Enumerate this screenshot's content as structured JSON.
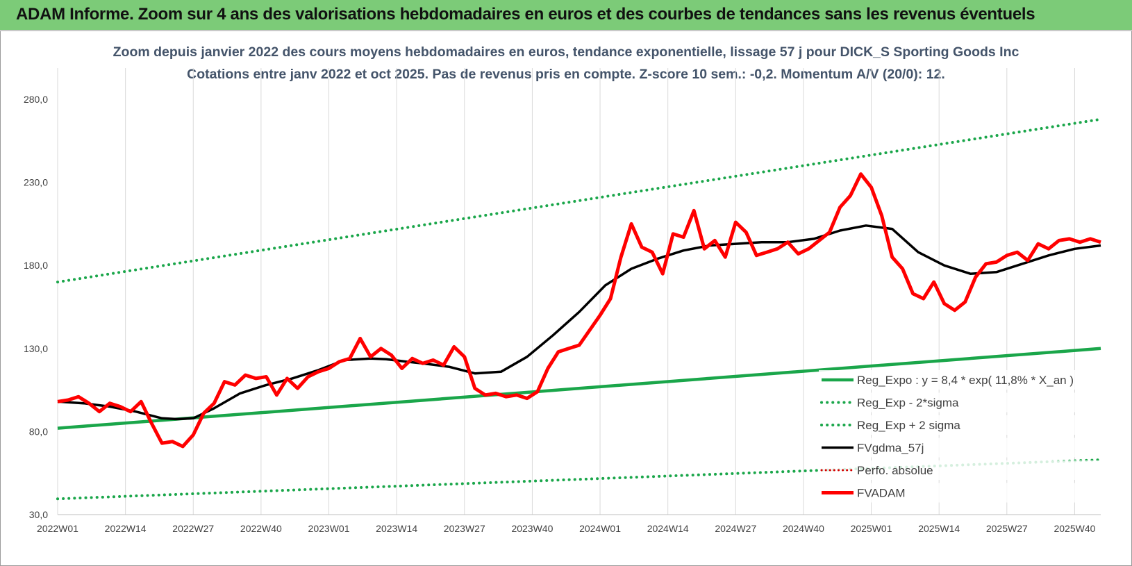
{
  "header": {
    "title": "ADAM Informe. Zoom sur 4 ans des valorisations hebdomadaires en euros et des courbes de tendances sans les revenus éventuels"
  },
  "colors": {
    "header_bg": "#7ccb78",
    "trend": "#1aa64a",
    "sigma": "#1aa64a",
    "gdma": "#000000",
    "fvadam": "#ff0000",
    "perfo": "#d40000"
  },
  "chart_data": {
    "type": "line",
    "title": "Zoom depuis janvier 2022 des cours moyens hebdomadaires en euros, tendance exponentielle, lissage 57 j pour DICK_S Sporting Goods Inc",
    "subtitle": "Cotations entre janv 2022 et oct 2025. Pas de revenus pris en compte. Z-score 10 sem.: -0,2. Momentum A/V (20/0): 12.",
    "xlabel": "",
    "ylabel": "",
    "ylim": [
      30,
      280
    ],
    "y_ticks": [
      "30,0",
      "80,0",
      "130,0",
      "180,0",
      "230,0",
      "280,0"
    ],
    "x_ticks": [
      "2022W01",
      "2022W14",
      "2022W27",
      "2022W40",
      "2023W01",
      "2023W14",
      "2023W27",
      "2023W40",
      "2024W01",
      "2024W14",
      "2024W27",
      "2024W40",
      "2025W01",
      "2025W14",
      "2025W27",
      "2025W40"
    ],
    "x_range_weeks": [
      0,
      200
    ],
    "grid": "vertical",
    "legend_position": "bottom-right",
    "legend": [
      "Reg_Expo : y = 8,4 * exp( 11,8% * X_an )",
      "Reg_Exp - 2*sigma",
      "Reg_Exp + 2 sigma",
      "FVgdma_57j",
      "Perfo. absolue",
      "FVADAM"
    ],
    "series": [
      {
        "name": "Reg_Expo : y = 8,4 * exp( 11,8% * X_an )",
        "style": "solid",
        "x": [
          0,
          200
        ],
        "values": [
          82,
          130
        ]
      },
      {
        "name": "Reg_Exp - 2*sigma",
        "style": "dotted",
        "x": [
          0,
          200
        ],
        "values": [
          39.5,
          63
        ]
      },
      {
        "name": "Reg_Exp + 2 sigma",
        "style": "dotted",
        "x": [
          0,
          200
        ],
        "values": [
          170,
          268
        ]
      },
      {
        "name": "FVgdma_57j",
        "style": "solid-thin",
        "x": [
          0,
          5,
          10,
          15,
          20,
          23,
          26,
          30,
          35,
          40,
          45,
          50,
          55,
          60,
          63,
          67,
          70,
          75,
          80,
          85,
          90,
          95,
          100,
          105,
          110,
          115,
          120,
          125,
          130,
          135,
          140,
          145,
          150,
          155,
          160,
          165,
          170,
          175,
          180,
          185,
          190,
          195,
          200
        ],
        "values": [
          98,
          97,
          95,
          92,
          88,
          87.5,
          88,
          94,
          103,
          108,
          112,
          117,
          123,
          124,
          123.5,
          122,
          121,
          119,
          115,
          116,
          125,
          138,
          152,
          168,
          178,
          184,
          189,
          192,
          193,
          194,
          194,
          196,
          201,
          204,
          202,
          188,
          180,
          175,
          176,
          181,
          186,
          190,
          192
        ]
      },
      {
        "name": "FVADAM",
        "style": "solid-thick",
        "x": [
          0,
          2,
          4,
          6,
          8,
          10,
          12,
          14,
          16,
          18,
          20,
          22,
          24,
          26,
          28,
          30,
          32,
          34,
          36,
          38,
          40,
          42,
          44,
          46,
          48,
          50,
          52,
          54,
          56,
          58,
          60,
          62,
          64,
          66,
          68,
          70,
          72,
          74,
          76,
          78,
          80,
          82,
          84,
          86,
          88,
          90,
          92,
          94,
          96,
          98,
          100,
          102,
          104,
          106,
          108,
          110,
          112,
          114,
          116,
          118,
          120,
          122,
          124,
          126,
          128,
          130,
          132,
          134,
          136,
          138,
          140,
          142,
          144,
          146,
          148,
          150,
          152,
          154,
          156,
          158,
          160,
          162,
          164,
          166,
          168,
          170,
          172,
          174,
          176,
          178,
          180,
          182,
          184,
          186,
          188,
          190,
          192,
          194,
          196,
          198,
          200
        ],
        "values": [
          98,
          99,
          101,
          97,
          92,
          97,
          95,
          92,
          98,
          85,
          73,
          74,
          71,
          78,
          91,
          97,
          110,
          108,
          114,
          112,
          113,
          102,
          112,
          106,
          113,
          116,
          118,
          122,
          124,
          136,
          125,
          130,
          126,
          118,
          124,
          121,
          123,
          120,
          131,
          125,
          106,
          102,
          103,
          101,
          102,
          100,
          104,
          118,
          128,
          130,
          132,
          141,
          150,
          160,
          185,
          205,
          191,
          188,
          175,
          199,
          197,
          213,
          190,
          195,
          185,
          206,
          200,
          186,
          188,
          190,
          194,
          187,
          190,
          195,
          200,
          215,
          222,
          235,
          227,
          210,
          185,
          178,
          163,
          160,
          170,
          157,
          153,
          158,
          173,
          181,
          182,
          186,
          188,
          183,
          193,
          190,
          195,
          196,
          194,
          196,
          194
        ]
      }
    ]
  }
}
